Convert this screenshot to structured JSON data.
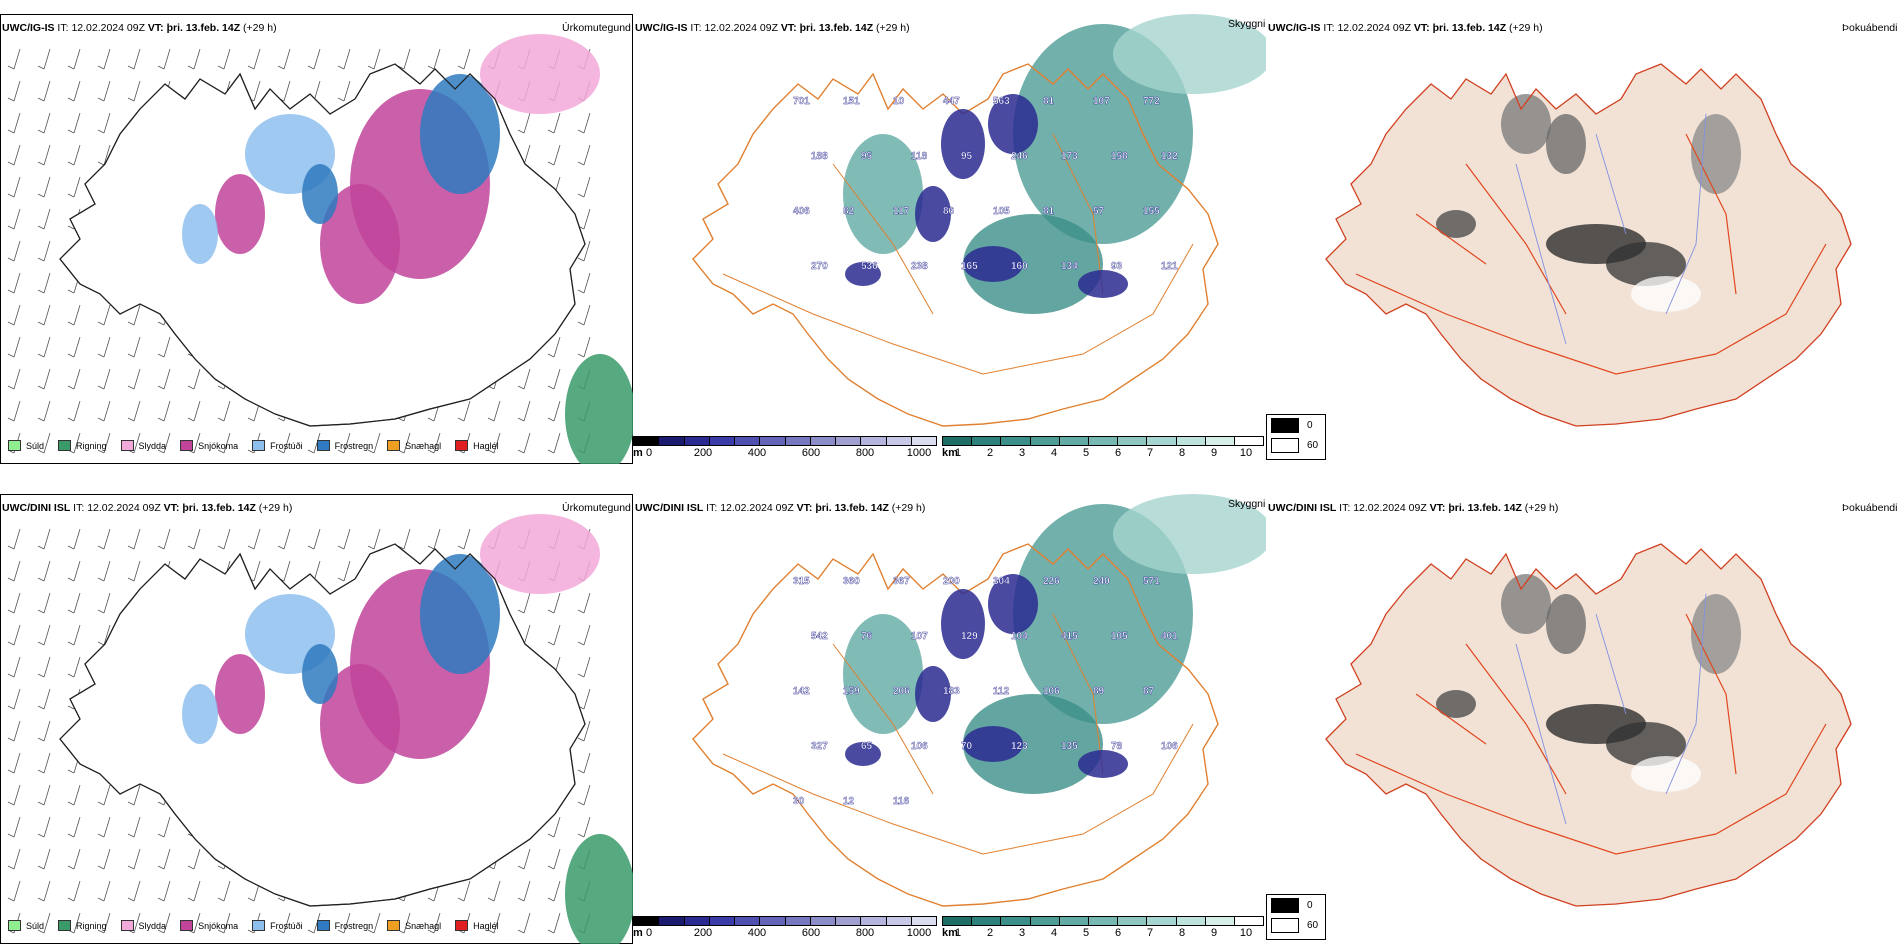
{
  "rows": [
    {
      "model": "UWC/IG-IS",
      "it_label": "IT:",
      "it_value": "12.02.2024 09Z",
      "vt_label": "VT:",
      "vt_value": "þri. 13.feb. 14Z",
      "lead": "(+29 h)"
    },
    {
      "model": "UWC/DINI ISL",
      "it_label": "IT:",
      "it_value": "12.02.2024 09Z",
      "vt_label": "VT:",
      "vt_value": "þri. 13.feb. 14Z",
      "lead": "(+29 h)"
    }
  ],
  "panel_types": {
    "precip": "Úrkomutegund",
    "cloud": "Skyggni",
    "fog": "Þokuábendi"
  },
  "precip_legend": [
    {
      "label": "Súld",
      "color": "#90ee90"
    },
    {
      "label": "Rigning",
      "color": "#3a9a6a"
    },
    {
      "label": "Slydda",
      "color": "#f2a8d8"
    },
    {
      "label": "Snjókoma",
      "color": "#c0449a"
    },
    {
      "label": "Frostúði",
      "color": "#8ec0ee"
    },
    {
      "label": "Frostregn",
      "color": "#2f7ac0"
    },
    {
      "label": "Snæhagl",
      "color": "#f0a020"
    },
    {
      "label": "Haglél",
      "color": "#e02020"
    }
  ],
  "base_scale": {
    "unit": "m",
    "ticks": [
      "0",
      "200",
      "400",
      "600",
      "800",
      "1000"
    ],
    "colors": [
      "#000000",
      "#1a1a6e",
      "#2a2a90",
      "#3c3ca8",
      "#5050b0",
      "#6464b8",
      "#7878c0",
      "#8c8cc8",
      "#a0a0d0",
      "#b4b4dc",
      "#c8c8e6",
      "#dcdcf0"
    ]
  },
  "vis_scale": {
    "unit": "km",
    "ticks": [
      "1",
      "2",
      "3",
      "4",
      "5",
      "6",
      "7",
      "8",
      "9",
      "10"
    ],
    "colors": [
      "#1e6e66",
      "#2e807a",
      "#3c8e88",
      "#4e9c96",
      "#62aaa4",
      "#78b8b2",
      "#8ec6c0",
      "#a6d4ce",
      "#bee2dc",
      "#d6eee8",
      "#ffffff"
    ]
  },
  "cloud_legend": [
    {
      "label": "0",
      "color": "#000000"
    },
    {
      "label": "60",
      "color": "#ffffff"
    }
  ],
  "cloud_labels_top": [
    "701",
    "151",
    "10",
    "447",
    "563",
    "81",
    "107",
    "772",
    "188",
    "95",
    "118",
    "95",
    "246",
    "173",
    "158",
    "132",
    "406",
    "82",
    "117",
    "86",
    "105",
    "81",
    "57",
    "155",
    "270",
    "536",
    "238",
    "165",
    "160",
    "134",
    "93",
    "121"
  ],
  "cloud_labels_bottom": [
    "315",
    "360",
    "367",
    "200",
    "304",
    "226",
    "240",
    "571",
    "542",
    "76",
    "107",
    "129",
    "104",
    "415",
    "105",
    "401",
    "142",
    "159",
    "206",
    "183",
    "112",
    "106",
    "89",
    "87",
    "327",
    "65",
    "106",
    "70",
    "123",
    "135",
    "78",
    "106",
    "30",
    "12",
    "116"
  ]
}
